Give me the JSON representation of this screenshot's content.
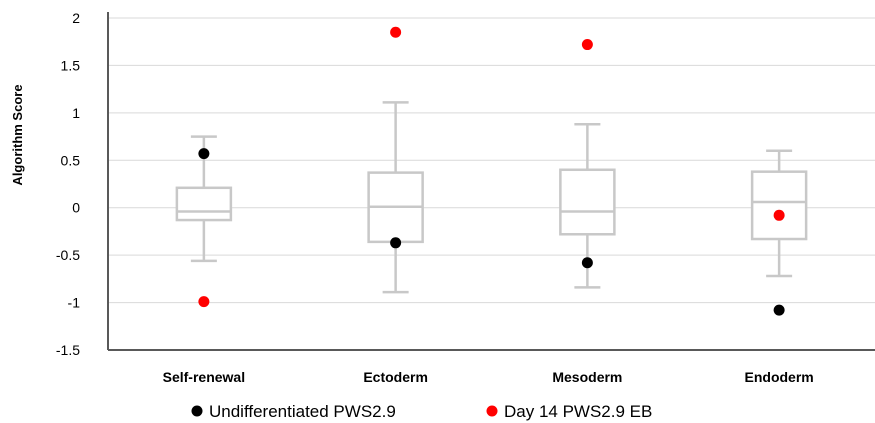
{
  "chart_data": {
    "type": "box",
    "title": "",
    "xlabel": "",
    "ylabel": "Algorithm Score",
    "ylim": [
      -1.5,
      2
    ],
    "yticks": [
      2,
      1.5,
      1,
      0.5,
      0,
      -0.5,
      -1,
      -1.5
    ],
    "ytick_labels": [
      "2",
      "1.5",
      "1",
      "0.5",
      "0",
      "-0.5",
      "-1",
      "-1.5"
    ],
    "grid": true,
    "legend_position": "bottom",
    "categories": [
      "Self-renewal",
      "Ectoderm",
      "Mesoderm",
      "Endoderm"
    ],
    "boxes": [
      {
        "min": -0.56,
        "q1": -0.13,
        "median": -0.04,
        "q3": 0.21,
        "max": 0.75
      },
      {
        "min": -0.89,
        "q1": -0.36,
        "median": 0.01,
        "q3": 0.37,
        "max": 1.11
      },
      {
        "min": -0.84,
        "q1": -0.28,
        "median": -0.04,
        "q3": 0.4,
        "max": 0.88
      },
      {
        "min": -0.72,
        "q1": -0.33,
        "median": 0.06,
        "q3": 0.38,
        "max": 0.6
      }
    ],
    "series": [
      {
        "name": "Undifferentiated PWS2.9",
        "color": "#000000",
        "values": [
          0.57,
          -0.37,
          -0.58,
          -1.08
        ]
      },
      {
        "name": "Day 14 PWS2.9 EB",
        "color": "#ff0000",
        "values": [
          -0.99,
          1.85,
          1.72,
          -0.08
        ]
      }
    ],
    "box_color": "#c8c8c8",
    "grid_color": "#d9d9d9",
    "axis_color": "#595959"
  }
}
